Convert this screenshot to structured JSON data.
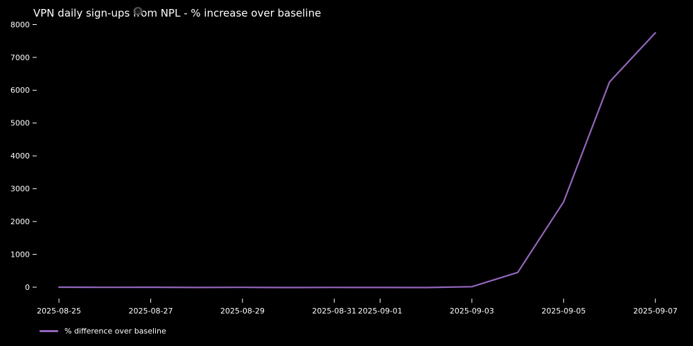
{
  "page": {
    "background_color": "#000000",
    "text_color": "#ffffff"
  },
  "chart_data": {
    "type": "line",
    "title": "VPN daily sign-ups from NPL - % increase over baseline",
    "xlabel": "",
    "ylabel": "",
    "x": [
      "2025-08-25",
      "2025-08-26",
      "2025-08-27",
      "2025-08-28",
      "2025-08-29",
      "2025-08-30",
      "2025-08-31",
      "2025-09-01",
      "2025-09-02",
      "2025-09-03",
      "2025-09-04",
      "2025-09-05",
      "2025-09-06",
      "2025-09-07"
    ],
    "series": [
      {
        "name": "% difference over baseline",
        "color": "#9467bd",
        "values": [
          0,
          -5,
          -3,
          -8,
          -5,
          -10,
          -6,
          -8,
          -10,
          15,
          450,
          2600,
          6250,
          7750
        ]
      }
    ],
    "yticks": [
      0,
      1000,
      2000,
      3000,
      4000,
      5000,
      6000,
      7000,
      8000
    ],
    "xtick_labels": [
      "2025-08-25",
      "2025-08-27",
      "2025-08-29",
      "2025-08-31",
      "2025-09-01",
      "2025-09-03",
      "2025-09-05",
      "2025-09-07"
    ],
    "ylim": [
      -350,
      8350
    ],
    "grid": false,
    "legend_position": "lower-left-outside",
    "background": "#000000",
    "tick_color": "#ffffff"
  }
}
